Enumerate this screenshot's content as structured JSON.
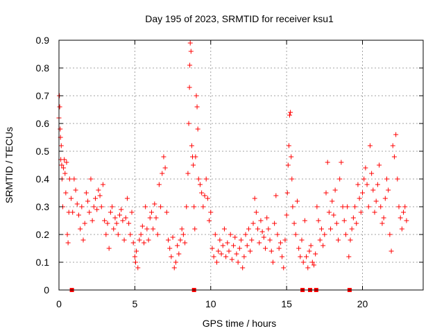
{
  "chart_data": {
    "type": "scatter",
    "title": "Day 195 of 2023, SRMTID for receiver ksu1",
    "xlabel": "GPS time / hours",
    "ylabel": "SRMTID / TECUs",
    "xlim": [
      0,
      24
    ],
    "ylim": [
      0,
      0.9
    ],
    "xticks": [
      0,
      5,
      10,
      15,
      20
    ],
    "yticks": [
      0,
      0.1,
      0.2,
      0.3,
      0.4,
      0.5,
      0.6,
      0.7,
      0.8,
      0.9
    ],
    "xtick_labels": [
      "0",
      "5",
      "10",
      "15",
      "20"
    ],
    "ytick_labels": [
      "0",
      "0.1",
      "0.2",
      "0.3",
      "0.4",
      "0.5",
      "0.6",
      "0.7",
      "0.8",
      "0.9"
    ],
    "grid": true,
    "marker": "+",
    "color": "#ff0000",
    "series": [
      {
        "name": "SRMTID",
        "points": [
          [
            0.0,
            0.62
          ],
          [
            0.03,
            0.7
          ],
          [
            0.05,
            0.66
          ],
          [
            0.08,
            0.58
          ],
          [
            0.1,
            0.55
          ],
          [
            0.12,
            0.47
          ],
          [
            0.15,
            0.52
          ],
          [
            0.18,
            0.45
          ],
          [
            0.2,
            0.4
          ],
          [
            0.25,
            0.3
          ],
          [
            0.3,
            0.44
          ],
          [
            0.35,
            0.47
          ],
          [
            0.4,
            0.42
          ],
          [
            0.45,
            0.35
          ],
          [
            0.5,
            0.46
          ],
          [
            0.55,
            0.2
          ],
          [
            0.6,
            0.17
          ],
          [
            0.65,
            0.28
          ],
          [
            0.7,
            0.4
          ],
          [
            0.8,
            0.33
          ],
          [
            0.9,
            0.28
          ],
          [
            1.0,
            0.4
          ],
          [
            1.1,
            0.36
          ],
          [
            1.2,
            0.31
          ],
          [
            1.3,
            0.27
          ],
          [
            1.4,
            0.22
          ],
          [
            1.5,
            0.3
          ],
          [
            1.6,
            0.18
          ],
          [
            1.7,
            0.24
          ],
          [
            1.8,
            0.35
          ],
          [
            1.9,
            0.32
          ],
          [
            2.0,
            0.28
          ],
          [
            2.1,
            0.4
          ],
          [
            2.2,
            0.25
          ],
          [
            2.3,
            0.3
          ],
          [
            2.4,
            0.33
          ],
          [
            2.5,
            0.29
          ],
          [
            2.6,
            0.36
          ],
          [
            2.7,
            0.34
          ],
          [
            2.8,
            0.3
          ],
          [
            2.9,
            0.38
          ],
          [
            3.0,
            0.25
          ],
          [
            3.1,
            0.2
          ],
          [
            3.2,
            0.24
          ],
          [
            3.3,
            0.15
          ],
          [
            3.4,
            0.28
          ],
          [
            3.5,
            0.3
          ],
          [
            3.6,
            0.22
          ],
          [
            3.7,
            0.26
          ],
          [
            3.8,
            0.24
          ],
          [
            3.9,
            0.2
          ],
          [
            4.0,
            0.27
          ],
          [
            4.1,
            0.29
          ],
          [
            4.2,
            0.25
          ],
          [
            4.3,
            0.18
          ],
          [
            4.4,
            0.26
          ],
          [
            4.5,
            0.33
          ],
          [
            4.6,
            0.24
          ],
          [
            4.7,
            0.2
          ],
          [
            4.8,
            0.28
          ],
          [
            4.9,
            0.17
          ],
          [
            5.0,
            0.12
          ],
          [
            5.05,
            0.1
          ],
          [
            5.1,
            0.14
          ],
          [
            5.2,
            0.08
          ],
          [
            5.3,
            0.18
          ],
          [
            5.4,
            0.2
          ],
          [
            5.5,
            0.23
          ],
          [
            5.6,
            0.17
          ],
          [
            5.7,
            0.3
          ],
          [
            5.8,
            0.22
          ],
          [
            5.9,
            0.18
          ],
          [
            6.0,
            0.26
          ],
          [
            6.1,
            0.28
          ],
          [
            6.2,
            0.22
          ],
          [
            6.3,
            0.31
          ],
          [
            6.4,
            0.26
          ],
          [
            6.5,
            0.2
          ],
          [
            6.6,
            0.38
          ],
          [
            6.7,
            0.3
          ],
          [
            6.8,
            0.42
          ],
          [
            6.9,
            0.48
          ],
          [
            7.0,
            0.44
          ],
          [
            7.1,
            0.28
          ],
          [
            7.2,
            0.18
          ],
          [
            7.3,
            0.15
          ],
          [
            7.4,
            0.12
          ],
          [
            7.5,
            0.19
          ],
          [
            7.6,
            0.08
          ],
          [
            7.7,
            0.1
          ],
          [
            7.8,
            0.16
          ],
          [
            7.9,
            0.13
          ],
          [
            8.0,
            0.18
          ],
          [
            8.1,
            0.22
          ],
          [
            8.2,
            0.2
          ],
          [
            8.3,
            0.17
          ],
          [
            8.4,
            0.3
          ],
          [
            8.5,
            0.42
          ],
          [
            8.55,
            0.6
          ],
          [
            8.6,
            0.73
          ],
          [
            8.62,
            0.81
          ],
          [
            8.65,
            0.89
          ],
          [
            8.7,
            0.86
          ],
          [
            8.75,
            0.52
          ],
          [
            8.8,
            0.48
          ],
          [
            8.85,
            0.45
          ],
          [
            8.9,
            0.3
          ],
          [
            8.95,
            0.22
          ],
          [
            9.0,
            0.48
          ],
          [
            9.05,
            0.7
          ],
          [
            9.1,
            0.66
          ],
          [
            9.15,
            0.58
          ],
          [
            9.2,
            0.4
          ],
          [
            9.3,
            0.38
          ],
          [
            9.4,
            0.35
          ],
          [
            9.5,
            0.3
          ],
          [
            9.6,
            0.34
          ],
          [
            9.7,
            0.4
          ],
          [
            9.8,
            0.33
          ],
          [
            9.9,
            0.25
          ],
          [
            10.0,
            0.28
          ],
          [
            10.1,
            0.15
          ],
          [
            10.2,
            0.12
          ],
          [
            10.3,
            0.2
          ],
          [
            10.4,
            0.1
          ],
          [
            10.5,
            0.14
          ],
          [
            10.6,
            0.18
          ],
          [
            10.7,
            0.13
          ],
          [
            10.8,
            0.16
          ],
          [
            10.9,
            0.22
          ],
          [
            11.0,
            0.12
          ],
          [
            11.1,
            0.17
          ],
          [
            11.2,
            0.14
          ],
          [
            11.3,
            0.2
          ],
          [
            11.4,
            0.11
          ],
          [
            11.5,
            0.16
          ],
          [
            11.6,
            0.19
          ],
          [
            11.7,
            0.13
          ],
          [
            11.8,
            0.1
          ],
          [
            11.9,
            0.15
          ],
          [
            12.0,
            0.18
          ],
          [
            12.1,
            0.08
          ],
          [
            12.2,
            0.12
          ],
          [
            12.3,
            0.2
          ],
          [
            12.4,
            0.16
          ],
          [
            12.5,
            0.22
          ],
          [
            12.6,
            0.14
          ],
          [
            12.7,
            0.18
          ],
          [
            12.8,
            0.24
          ],
          [
            12.9,
            0.33
          ],
          [
            13.0,
            0.28
          ],
          [
            13.1,
            0.22
          ],
          [
            13.2,
            0.17
          ],
          [
            13.3,
            0.25
          ],
          [
            13.4,
            0.21
          ],
          [
            13.5,
            0.19
          ],
          [
            13.6,
            0.15
          ],
          [
            13.7,
            0.26
          ],
          [
            13.8,
            0.22
          ],
          [
            13.9,
            0.18
          ],
          [
            14.0,
            0.14
          ],
          [
            14.1,
            0.1
          ],
          [
            14.2,
            0.24
          ],
          [
            14.3,
            0.34
          ],
          [
            14.4,
            0.2
          ],
          [
            14.5,
            0.15
          ],
          [
            14.6,
            0.17
          ],
          [
            14.7,
            0.12
          ],
          [
            14.8,
            0.08
          ],
          [
            14.9,
            0.18
          ],
          [
            15.0,
            0.27
          ],
          [
            15.05,
            0.35
          ],
          [
            15.1,
            0.45
          ],
          [
            15.15,
            0.52
          ],
          [
            15.2,
            0.63
          ],
          [
            15.25,
            0.64
          ],
          [
            15.3,
            0.48
          ],
          [
            15.35,
            0.4
          ],
          [
            15.4,
            0.3
          ],
          [
            15.5,
            0.24
          ],
          [
            15.6,
            0.2
          ],
          [
            15.7,
            0.32
          ],
          [
            15.8,
            0.15
          ],
          [
            15.9,
            0.12
          ],
          [
            16.0,
            0.18
          ],
          [
            16.1,
            0.1
          ],
          [
            16.2,
            0.25
          ],
          [
            16.3,
            0.12
          ],
          [
            16.4,
            0.08
          ],
          [
            16.5,
            0.14
          ],
          [
            16.6,
            0.16
          ],
          [
            16.7,
            0.1
          ],
          [
            16.8,
            0.09
          ],
          [
            16.9,
            0.13
          ],
          [
            17.0,
            0.3
          ],
          [
            17.1,
            0.25
          ],
          [
            17.2,
            0.18
          ],
          [
            17.3,
            0.22
          ],
          [
            17.4,
            0.16
          ],
          [
            17.5,
            0.2
          ],
          [
            17.6,
            0.35
          ],
          [
            17.7,
            0.46
          ],
          [
            17.8,
            0.28
          ],
          [
            17.9,
            0.22
          ],
          [
            18.0,
            0.32
          ],
          [
            18.1,
            0.27
          ],
          [
            18.2,
            0.36
          ],
          [
            18.3,
            0.24
          ],
          [
            18.4,
            0.18
          ],
          [
            18.5,
            0.4
          ],
          [
            18.6,
            0.46
          ],
          [
            18.7,
            0.3
          ],
          [
            18.8,
            0.25
          ],
          [
            18.9,
            0.2
          ],
          [
            19.0,
            0.3
          ],
          [
            19.1,
            0.12
          ],
          [
            19.2,
            0.18
          ],
          [
            19.3,
            0.22
          ],
          [
            19.4,
            0.26
          ],
          [
            19.5,
            0.3
          ],
          [
            19.6,
            0.24
          ],
          [
            19.7,
            0.38
          ],
          [
            19.8,
            0.33
          ],
          [
            19.9,
            0.28
          ],
          [
            20.0,
            0.35
          ],
          [
            20.1,
            0.4
          ],
          [
            20.2,
            0.44
          ],
          [
            20.3,
            0.38
          ],
          [
            20.4,
            0.3
          ],
          [
            20.5,
            0.52
          ],
          [
            20.6,
            0.42
          ],
          [
            20.7,
            0.36
          ],
          [
            20.8,
            0.28
          ],
          [
            20.9,
            0.32
          ],
          [
            21.0,
            0.38
          ],
          [
            21.1,
            0.45
          ],
          [
            21.2,
            0.3
          ],
          [
            21.3,
            0.24
          ],
          [
            21.4,
            0.26
          ],
          [
            21.5,
            0.33
          ],
          [
            21.6,
            0.4
          ],
          [
            21.7,
            0.36
          ],
          [
            21.8,
            0.2
          ],
          [
            21.9,
            0.14
          ],
          [
            22.0,
            0.52
          ],
          [
            22.1,
            0.48
          ],
          [
            22.2,
            0.56
          ],
          [
            22.3,
            0.4
          ],
          [
            22.4,
            0.3
          ],
          [
            22.5,
            0.26
          ],
          [
            22.6,
            0.22
          ],
          [
            22.7,
            0.28
          ],
          [
            22.8,
            0.3
          ],
          [
            22.9,
            0.25
          ]
        ]
      }
    ],
    "data_gaps": [
      0.85,
      8.9,
      16.05,
      16.55,
      16.95,
      19.15
    ]
  }
}
